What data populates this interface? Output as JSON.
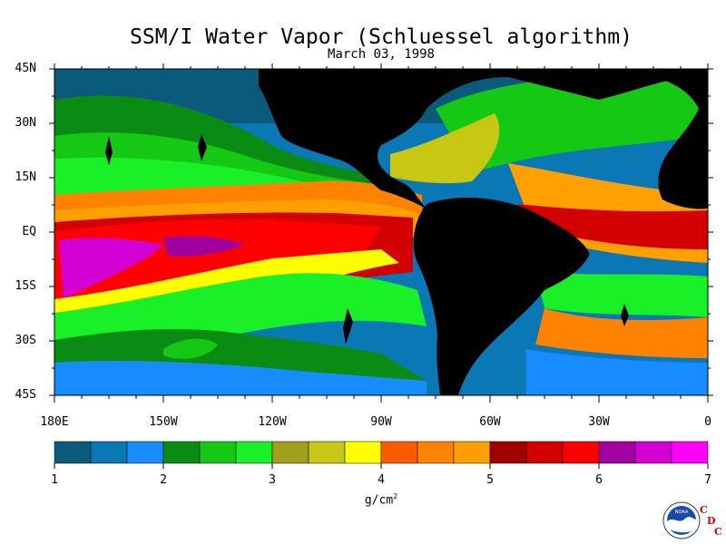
{
  "title": "SSM/I Water Vapor (Schluessel algorithm)",
  "subtitle": "March 03, 1998",
  "map": {
    "lat_labels": [
      "45N",
      "30N",
      "15N",
      "EQ",
      "15S",
      "30S",
      "45S"
    ],
    "lon_labels": [
      "180E",
      "150W",
      "120W",
      "90W",
      "60W",
      "30W",
      "0"
    ]
  },
  "colorbar": {
    "colors": [
      "#0a5a7c",
      "#0a78b4",
      "#168cff",
      "#0a8c14",
      "#14c814",
      "#19f028",
      "#a0a01e",
      "#c8c814",
      "#ffff00",
      "#ff5a00",
      "#ff8200",
      "#ffa000",
      "#a00000",
      "#d20000",
      "#ff0000",
      "#a000a0",
      "#d200d2",
      "#ff00ff"
    ],
    "tick_labels": [
      "1",
      "2",
      "3",
      "4",
      "5",
      "6",
      "7"
    ],
    "units": "g/cm",
    "units_sup": "2"
  },
  "logo": {
    "icon": "noaa-logo",
    "text": "NOAA",
    "cdc_letters": [
      "C",
      "D",
      "C"
    ]
  }
}
